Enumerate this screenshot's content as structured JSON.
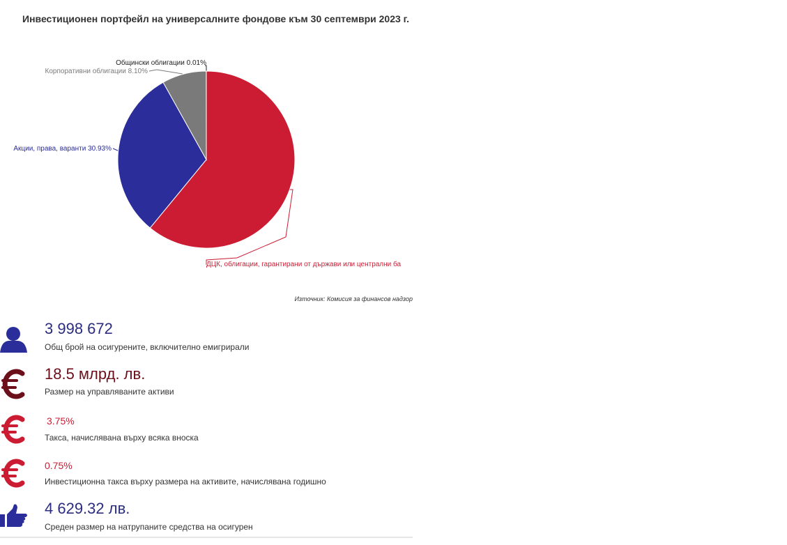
{
  "chart_data": {
    "type": "pie",
    "title": "Инвестиционен портфейл на универсалните фондове към 30 септември 2023 г.",
    "categories": [
      "ДЦК, облигации, гарантирани от държави или централни ба",
      "Акции, права, варанти",
      "Корпоративни облигации",
      "Общински облигации"
    ],
    "values": [
      60.96,
      30.93,
      8.1,
      0.01
    ],
    "value_labels": [
      null,
      "30.93%",
      "8.10%",
      "0.01%"
    ],
    "colors": [
      "#cc1c33",
      "#2b2d9b",
      "#7a7a7a",
      "#222222"
    ],
    "source": "Източник: Комисия за финансов надзор"
  },
  "stats": [
    {
      "value": "3 998 672",
      "label": "Общ брой на осигурените, включително емигрирали"
    },
    {
      "value": "18.5 млрд. лв.",
      "label": "Размер на управляваните активи"
    },
    {
      "value": "3.75%",
      "label": "Такса, начислявана върху всяка вноска"
    },
    {
      "value": "0.75%",
      "label": "Инвестиционна такса върху размера на активите, начислявана годишно"
    },
    {
      "value": "4 629.32 лв.",
      "label": "Среден размер на натрупаните средства на осигурен"
    }
  ]
}
